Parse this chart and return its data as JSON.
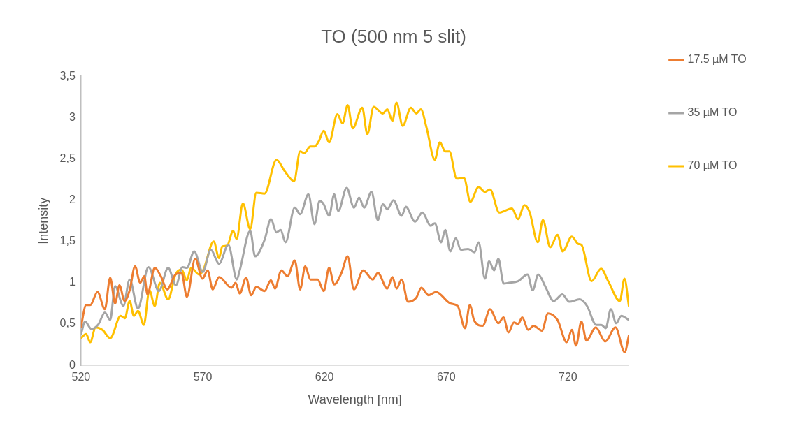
{
  "chart_data": {
    "type": "line",
    "title": "TO (500 nm 5 slit)",
    "xlabel": "Wavelength [nm]",
    "ylabel": "Intensity",
    "xlim": [
      520,
      745
    ],
    "xticks": [
      520,
      570,
      620,
      670,
      720
    ],
    "ylim": [
      0,
      3.5
    ],
    "yticks": [
      0,
      {
        "value": 0.5,
        "label": "0,5"
      },
      1,
      {
        "value": 1.5,
        "label": "1,5"
      },
      2,
      {
        "value": 2.5,
        "label": "2,5"
      },
      3,
      {
        "value": 3.5,
        "label": "3,5"
      }
    ],
    "grid": false,
    "legend": "right",
    "marker": "none",
    "line_style": "solid",
    "series": [
      {
        "name": "17.5 µM TO",
        "color": "#ed7d31",
        "x": [
          520,
          522.1,
          523.8,
          526.8,
          529.8,
          532,
          534,
          535.8,
          537.9,
          540,
          542.2,
          544.3,
          546,
          547.3,
          550.3,
          552.8,
          555.4,
          558.8,
          561.3,
          563.5,
          566.9,
          569.9,
          572,
          574.1,
          576.7,
          581.8,
          583.5,
          585.2,
          587.8,
          589.9,
          592,
          595.4,
          598,
          599.7,
          602.3,
          604.8,
          607.8,
          610,
          612.1,
          614.2,
          617.2,
          619.7,
          621.9,
          624,
          627,
          629.5,
          632.1,
          635.9,
          639.8,
          641.9,
          645.8,
          647.9,
          649.6,
          651.7,
          654.3,
          657.7,
          659.8,
          662.8,
          665.8,
          671.7,
          674.7,
          677.7,
          679.7,
          681.5,
          685,
          688,
          691.4,
          693.5,
          695.6,
          697.8,
          699.5,
          701.2,
          703.7,
          705.9,
          709.3,
          711.8,
          715.7,
          719.5,
          721.6,
          723.3,
          725.5,
          727.6,
          731.4,
          735.3,
          739.5,
          743.3,
          745
        ],
        "values": [
          0.47,
          0.73,
          0.73,
          0.89,
          0.68,
          1.06,
          0.75,
          0.97,
          0.78,
          0.91,
          1.2,
          1.0,
          1.08,
          0.86,
          1.18,
          1.08,
          0.92,
          1.1,
          1.12,
          0.83,
          1.29,
          1.05,
          1.15,
          0.92,
          1.07,
          0.94,
          1.0,
          0.87,
          1.06,
          0.85,
          0.95,
          0.9,
          1.03,
          0.93,
          1.15,
          1.08,
          1.27,
          0.92,
          1.2,
          1.04,
          1.04,
          0.9,
          1.18,
          0.98,
          1.12,
          1.32,
          0.92,
          1.15,
          1.04,
          1.12,
          0.93,
          1.07,
          0.93,
          1.04,
          0.77,
          0.82,
          0.94,
          0.85,
          0.89,
          0.75,
          0.72,
          0.45,
          0.73,
          0.54,
          0.48,
          0.68,
          0.51,
          0.58,
          0.4,
          0.52,
          0.5,
          0.58,
          0.43,
          0.48,
          0.42,
          0.63,
          0.55,
          0.28,
          0.43,
          0.24,
          0.53,
          0.3,
          0.46,
          0.29,
          0.46,
          0.16,
          0.36
        ]
      },
      {
        "name": "35 µM TO",
        "color": "#a5a5a5",
        "x": [
          520,
          521.7,
          524.3,
          527.2,
          529.8,
          532,
          534,
          537.4,
          540,
          543.4,
          547.7,
          552,
          555.8,
          559,
          561.7,
          563.5,
          566.5,
          570,
          573.3,
          576.7,
          580.5,
          584,
          585.2,
          589.5,
          591.5,
          595.4,
          598,
          600.3,
          602,
          604,
          607.8,
          610,
          613.4,
          615.9,
          618,
          619.7,
          621.9,
          624,
          625.7,
          629.1,
          632.1,
          634.2,
          636.3,
          639.3,
          641.9,
          644,
          645.8,
          648.3,
          651.7,
          653.4,
          657.2,
          660.2,
          663.6,
          665.3,
          667.9,
          669.6,
          671.7,
          673.9,
          676,
          679,
          681.6,
          683.3,
          685.9,
          687.6,
          689.7,
          691.4,
          693.6,
          695.7,
          699.5,
          703.4,
          705.5,
          707.8,
          710.6,
          714.1,
          717.7,
          720.5,
          724.8,
          727.8,
          731.6,
          733.7,
          735.5,
          737.6,
          739.8,
          741.9,
          745
        ],
        "values": [
          0.38,
          0.53,
          0.44,
          0.5,
          0.64,
          0.55,
          0.96,
          0.72,
          1.04,
          0.69,
          1.19,
          0.9,
          1.18,
          0.97,
          1.19,
          1.18,
          1.38,
          1.13,
          1.4,
          1.23,
          1.46,
          1.04,
          1.15,
          1.63,
          1.32,
          1.52,
          1.77,
          1.61,
          1.64,
          1.49,
          1.91,
          1.83,
          2.07,
          1.71,
          1.99,
          1.95,
          1.81,
          2.07,
          1.87,
          2.15,
          1.91,
          2.03,
          1.91,
          2.1,
          1.76,
          1.95,
          1.89,
          2.0,
          1.81,
          1.92,
          1.74,
          1.85,
          1.69,
          1.72,
          1.49,
          1.64,
          1.38,
          1.54,
          1.4,
          1.41,
          1.37,
          1.49,
          1.05,
          1.26,
          1.15,
          1.29,
          0.99,
          1.0,
          1.02,
          1.1,
          0.91,
          1.1,
          0.96,
          0.78,
          0.86,
          0.77,
          0.8,
          0.72,
          0.49,
          0.49,
          0.45,
          0.68,
          0.51,
          0.6,
          0.55
        ]
      },
      {
        "name": "70 µM TO",
        "color": "#ffc000",
        "x": [
          520,
          522.1,
          523.8,
          526,
          528.8,
          532,
          536.3,
          538,
          540,
          541.7,
          543.4,
          545.8,
          548.1,
          550.3,
          552.4,
          555.8,
          558.8,
          561.3,
          563.5,
          565.2,
          568.6,
          570.3,
          574.5,
          576.7,
          578,
          580,
          582.5,
          583.9,
          586.5,
          589.5,
          592,
          595.4,
          600.3,
          603.7,
          607.5,
          610,
          611.7,
          614.2,
          615.9,
          617.6,
          619.7,
          621.9,
          625.3,
          627.4,
          629.5,
          631.6,
          635.5,
          637.6,
          640.2,
          644,
          645.8,
          647.9,
          649.6,
          652.1,
          655.5,
          657.7,
          659.6,
          661.9,
          665.3,
          667.4,
          669.6,
          671.3,
          674.3,
          677.3,
          679.9,
          683.3,
          685.9,
          688,
          691.8,
          697,
          699.5,
          702.1,
          704.2,
          707.6,
          709.7,
          712.7,
          715.7,
          717.8,
          721.6,
          724.2,
          725.5,
          729.7,
          733.6,
          736.5,
          741.3,
          743.2,
          745
        ],
        "values": [
          0.33,
          0.38,
          0.28,
          0.46,
          0.43,
          0.33,
          0.6,
          0.57,
          0.78,
          0.6,
          0.66,
          0.49,
          0.91,
          0.72,
          1.0,
          0.8,
          1.1,
          1.16,
          1.03,
          1.18,
          1.1,
          1.16,
          1.5,
          1.3,
          1.44,
          1.45,
          1.63,
          1.53,
          1.96,
          1.65,
          2.09,
          2.08,
          2.49,
          2.35,
          2.23,
          2.59,
          2.57,
          2.65,
          2.65,
          2.71,
          2.84,
          2.7,
          3.04,
          2.93,
          3.15,
          2.87,
          3.12,
          2.8,
          3.13,
          3.05,
          3.1,
          2.96,
          3.18,
          2.9,
          3.12,
          3.05,
          3.1,
          2.88,
          2.49,
          2.7,
          2.59,
          2.59,
          2.26,
          2.27,
          1.98,
          2.16,
          2.1,
          2.13,
          1.85,
          1.9,
          1.77,
          1.94,
          1.86,
          1.49,
          1.76,
          1.43,
          1.58,
          1.38,
          1.56,
          1.47,
          1.46,
          1.02,
          1.17,
          1.02,
          0.78,
          1.05,
          0.72
        ]
      }
    ]
  }
}
